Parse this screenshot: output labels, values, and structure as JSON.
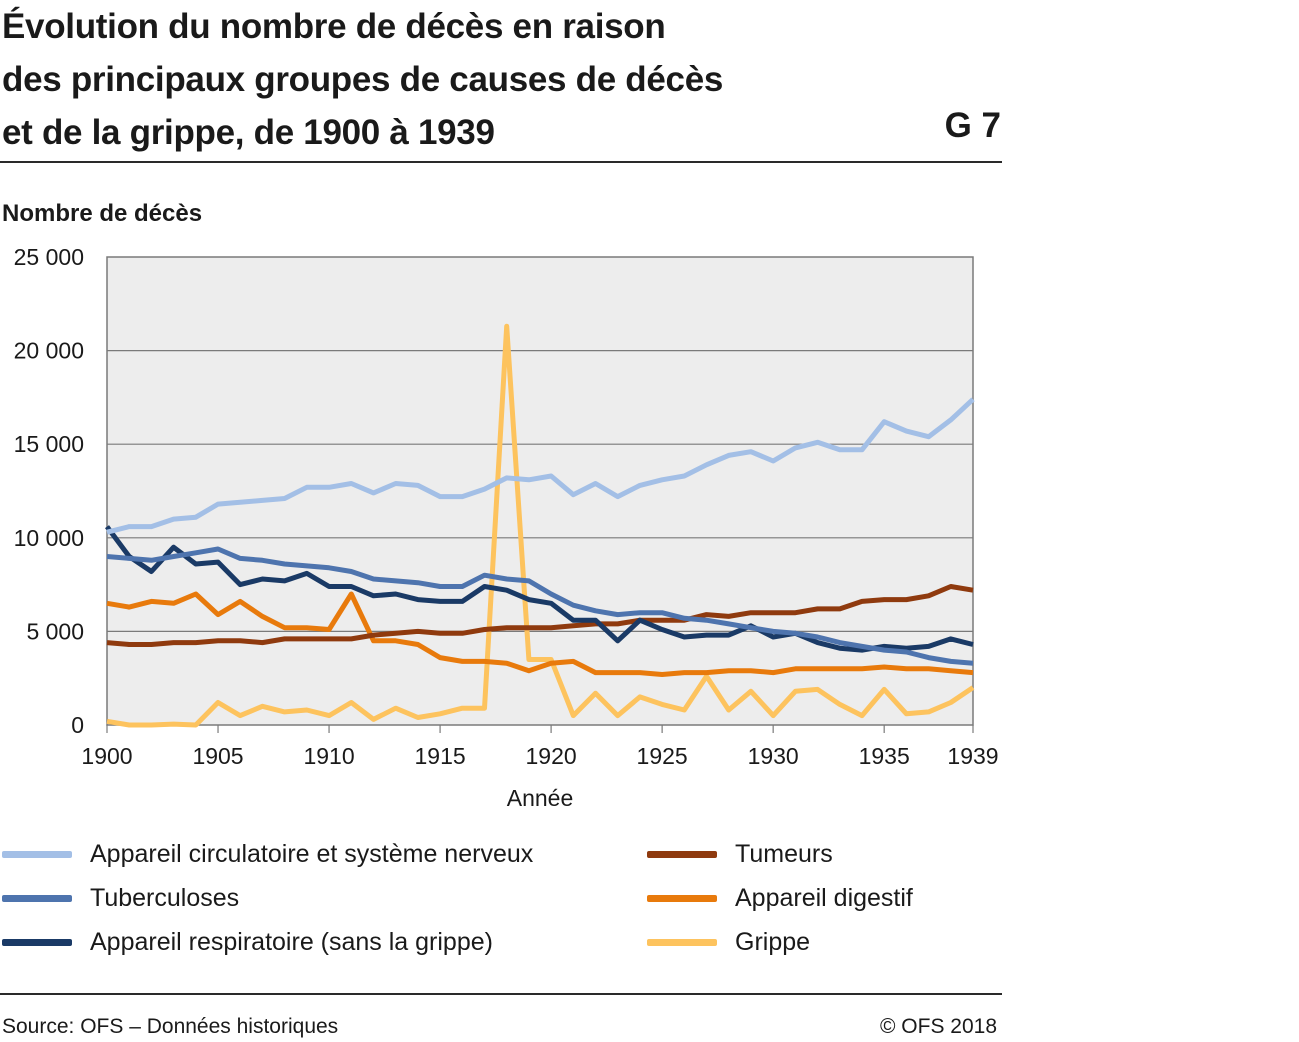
{
  "header": {
    "title_lines": [
      "Évolution du nombre de décès en raison",
      "des principaux groupes de causes de décès",
      "et de la grippe, de 1900 à 1939"
    ],
    "chart_id": "G 7"
  },
  "footer": {
    "source": "Source: OFS – Données historiques",
    "copyright": "© OFS 2018"
  },
  "chart_data": {
    "type": "line",
    "title": "Évolution du nombre de décès en raison des principaux groupes de causes de décès et de la grippe, de 1900 à 1939",
    "xlabel": "Année",
    "ylabel": "Nombre de décès",
    "xlim": [
      1900,
      1939
    ],
    "ylim": [
      0,
      25000
    ],
    "x_ticks": [
      "1900",
      "1905",
      "1910",
      "1915",
      "1920",
      "1925",
      "1930",
      "1935",
      "1939"
    ],
    "y_ticks": [
      "0",
      "5 000",
      "10 000",
      "15 000",
      "20 000",
      "25 000"
    ],
    "grid": true,
    "legend_position": "bottom",
    "x": [
      1900,
      1901,
      1902,
      1903,
      1904,
      1905,
      1906,
      1907,
      1908,
      1909,
      1910,
      1911,
      1912,
      1913,
      1914,
      1915,
      1916,
      1917,
      1918,
      1919,
      1920,
      1921,
      1922,
      1923,
      1924,
      1925,
      1926,
      1927,
      1928,
      1929,
      1930,
      1931,
      1932,
      1933,
      1934,
      1935,
      1936,
      1937,
      1938,
      1939
    ],
    "series": [
      {
        "name": "Appareil circulatoire et système nerveux",
        "color": "#a3bfe6",
        "values": [
          10300,
          10600,
          10600,
          11000,
          11100,
          11800,
          11900,
          12000,
          12100,
          12700,
          12700,
          12900,
          12400,
          12900,
          12800,
          12200,
          12200,
          12600,
          13200,
          13100,
          13300,
          12300,
          12900,
          12200,
          12800,
          13100,
          13300,
          13900,
          14400,
          14600,
          14100,
          14800,
          15100,
          14700,
          14700,
          16200,
          15700,
          15400,
          16300,
          17400
        ]
      },
      {
        "name": "Tuberculoses",
        "color": "#4e74ae",
        "values": [
          9000,
          8900,
          8800,
          9000,
          9200,
          9400,
          8900,
          8800,
          8600,
          8500,
          8400,
          8200,
          7800,
          7700,
          7600,
          7400,
          7400,
          8000,
          7800,
          7700,
          7000,
          6400,
          6100,
          5900,
          6000,
          6000,
          5700,
          5600,
          5400,
          5200,
          5000,
          4900,
          4700,
          4400,
          4200,
          4000,
          3900,
          3600,
          3400,
          3300
        ]
      },
      {
        "name": "Appareil respiratoire (sans la grippe)",
        "color": "#1a3a66",
        "values": [
          10600,
          9000,
          8200,
          9500,
          8600,
          8700,
          7500,
          7800,
          7700,
          8100,
          7400,
          7400,
          6900,
          7000,
          6700,
          6600,
          6600,
          7400,
          7200,
          6700,
          6500,
          5600,
          5600,
          4500,
          5600,
          5100,
          4700,
          4800,
          4800,
          5300,
          4700,
          4900,
          4400,
          4100,
          4000,
          4200,
          4100,
          4200,
          4600,
          4300
        ]
      },
      {
        "name": "Tumeurs",
        "color": "#8f3a0e",
        "values": [
          4400,
          4300,
          4300,
          4400,
          4400,
          4500,
          4500,
          4400,
          4600,
          4600,
          4600,
          4600,
          4800,
          4900,
          5000,
          4900,
          4900,
          5100,
          5200,
          5200,
          5200,
          5300,
          5400,
          5400,
          5600,
          5600,
          5600,
          5900,
          5800,
          6000,
          6000,
          6000,
          6200,
          6200,
          6600,
          6700,
          6700,
          6900,
          7400,
          7200
        ]
      },
      {
        "name": "Appareil digestif",
        "color": "#e87a0c",
        "values": [
          6500,
          6300,
          6600,
          6500,
          7000,
          5900,
          6600,
          5800,
          5200,
          5200,
          5100,
          7000,
          4500,
          4500,
          4300,
          3600,
          3400,
          3400,
          3300,
          2900,
          3300,
          3400,
          2800,
          2800,
          2800,
          2700,
          2800,
          2800,
          2900,
          2900,
          2800,
          3000,
          3000,
          3000,
          3000,
          3100,
          3000,
          3000,
          2900,
          2800
        ]
      },
      {
        "name": "Grippe",
        "color": "#fdc35e",
        "values": [
          200,
          0,
          0,
          50,
          0,
          1200,
          500,
          1000,
          700,
          800,
          500,
          1200,
          300,
          900,
          400,
          600,
          900,
          900,
          21300,
          3500,
          3500,
          500,
          1700,
          500,
          1500,
          1100,
          800,
          2600,
          800,
          1800,
          500,
          1800,
          1900,
          1100,
          500,
          1900,
          600,
          700,
          1200,
          2000
        ]
      }
    ]
  }
}
